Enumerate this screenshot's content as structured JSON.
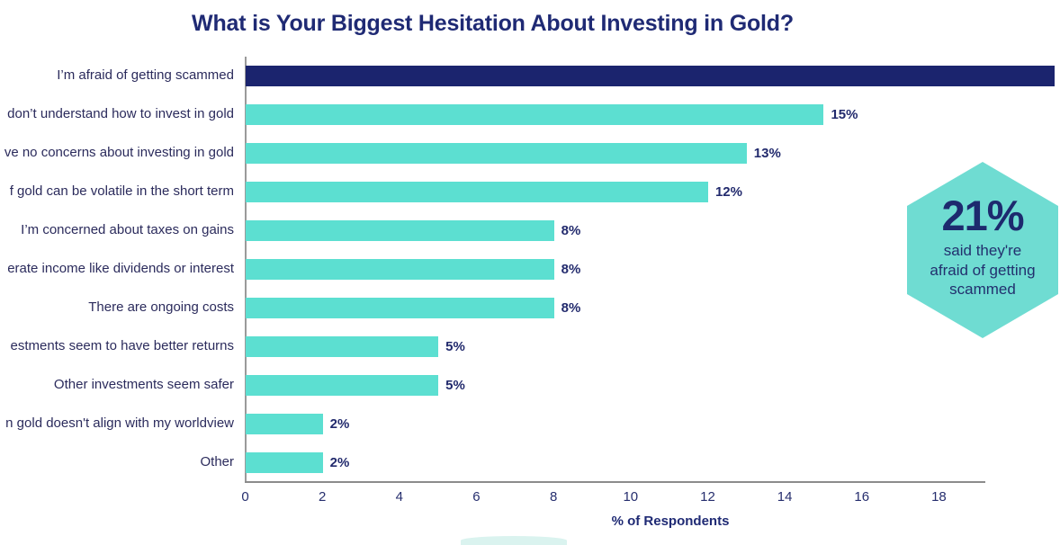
{
  "title": "What is Your Biggest Hesitation About Investing in Gold?",
  "colors": {
    "navy_bar": "#1b246e",
    "teal_bar": "#5cdfd1",
    "hexagon": "#6fdcd2",
    "title_text": "#1f2a74",
    "axis_gray": "#8c8c8c"
  },
  "chart_data": {
    "type": "bar",
    "orientation": "horizontal",
    "title": "What is Your Biggest Hesitation About Investing in Gold?",
    "xlabel": "% of Respondents",
    "ylabel": "",
    "xlim": [
      0,
      19.2
    ],
    "x_ticks": [
      0,
      2,
      4,
      6,
      8,
      10,
      12,
      14,
      16,
      18
    ],
    "grid": false,
    "rows": [
      {
        "label": "I’m afraid of getting scammed",
        "value": 21,
        "value_label": "",
        "color": "navy_bar"
      },
      {
        "label": "don’t understand how to invest in gold",
        "value": 15,
        "value_label": "15%",
        "color": "teal_bar"
      },
      {
        "label": "ve no concerns about investing in gold",
        "value": 13,
        "value_label": "13%",
        "color": "teal_bar"
      },
      {
        "label": "f gold can be volatile in the short term",
        "value": 12,
        "value_label": "12%",
        "color": "teal_bar"
      },
      {
        "label": "I’m concerned about taxes on gains",
        "value": 8,
        "value_label": "8%",
        "color": "teal_bar"
      },
      {
        "label": "erate income like dividends or interest",
        "value": 8,
        "value_label": "8%",
        "color": "teal_bar"
      },
      {
        "label": "There are ongoing costs",
        "value": 8,
        "value_label": "8%",
        "color": "teal_bar"
      },
      {
        "label": "estments seem to have better returns",
        "value": 5,
        "value_label": "5%",
        "color": "teal_bar"
      },
      {
        "label": "Other investments seem safer",
        "value": 5,
        "value_label": "5%",
        "color": "teal_bar"
      },
      {
        "label": "n gold doesn't align with my worldview",
        "value": 2,
        "value_label": "2%",
        "color": "teal_bar"
      },
      {
        "label": "Other",
        "value": 2,
        "value_label": "2%",
        "color": "teal_bar"
      }
    ]
  },
  "badge": {
    "number": "21%",
    "lines": [
      "said they're",
      "afraid of getting",
      "scammed"
    ]
  }
}
